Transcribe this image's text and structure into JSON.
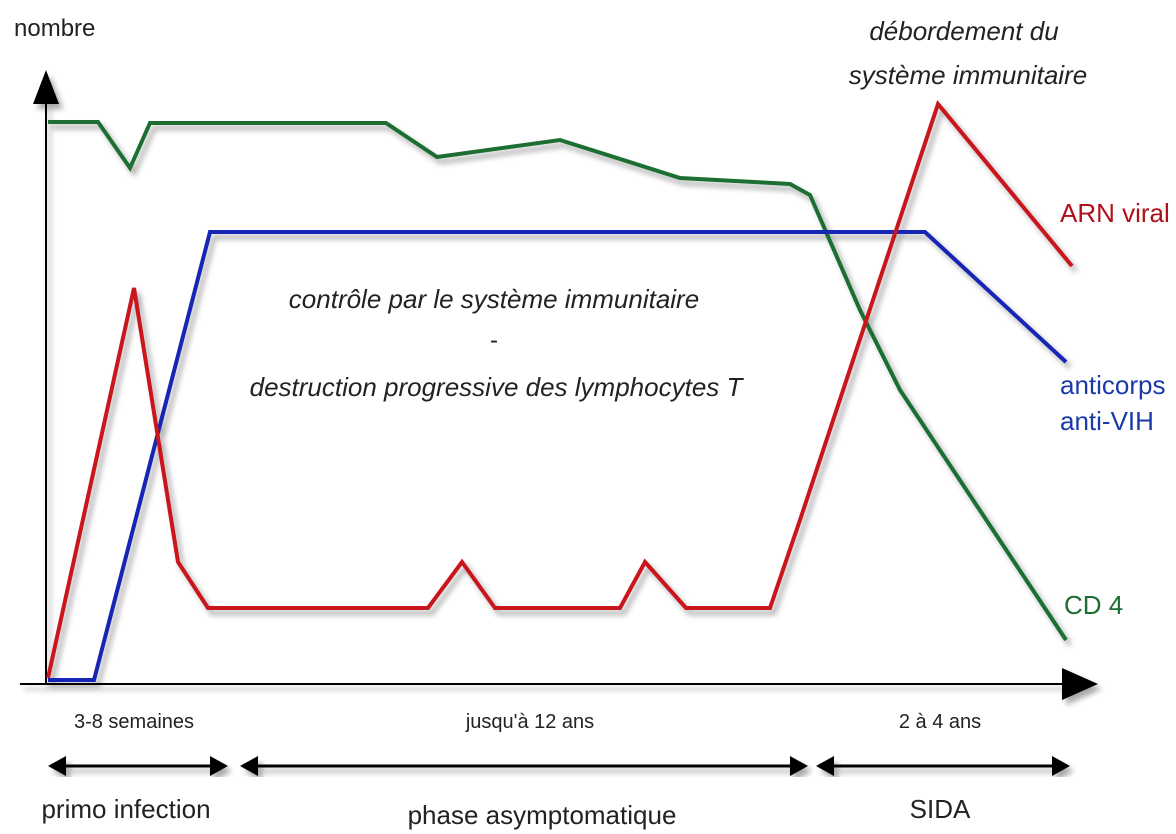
{
  "axes": {
    "y_label": "nombre"
  },
  "annotations": {
    "overflow_line1": "débordement du",
    "overflow_line2": "système immunitaire",
    "control_line1": "contrôle par le système immunitaire",
    "control_sep": "-",
    "control_line2": "destruction progressive des lymphocytes T"
  },
  "series_labels": {
    "arn": "ARN viral",
    "anticorps_line1": "anticorps",
    "anticorps_line2": "anti-VIH",
    "cd4": "CD 4"
  },
  "phases": [
    {
      "duration": "3-8 semaines",
      "name": "primo infection"
    },
    {
      "duration": "jusqu'à 12 ans",
      "name": "phase asymptomatique"
    },
    {
      "duration": "2 à 4 ans",
      "name": "SIDA"
    }
  ],
  "colors": {
    "arn": "#c8141e",
    "anticorps": "#1428b4",
    "cd4": "#1e6e32",
    "axis": "#000000",
    "text_red": "#b0101a",
    "text_blue": "#1a3aa8",
    "text_green": "#1e6e32"
  },
  "icons": {
    "y_arrow": "arrow-up-icon",
    "x_arrow": "arrow-right-icon",
    "span_arrow": "double-arrow-icon"
  }
}
